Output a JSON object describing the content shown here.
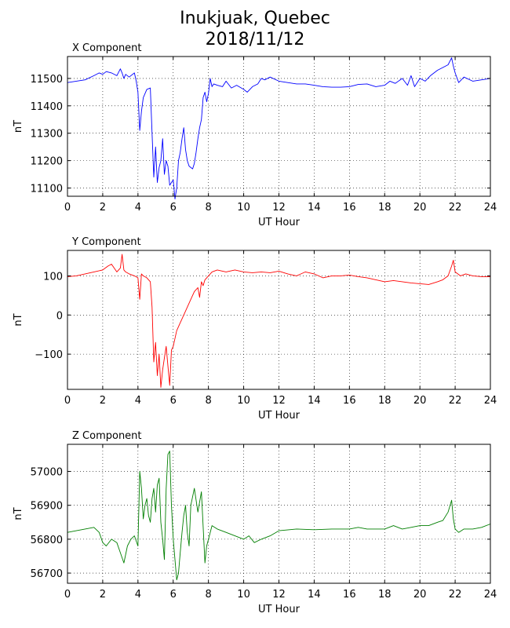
{
  "title_line1": "Inukjuak, Quebec",
  "title_line2": "2018/11/12",
  "chart_data": [
    {
      "type": "line",
      "title": "X Component",
      "xlabel": "UT Hour",
      "ylabel": "nT",
      "color": "#0000ff",
      "xlim": [
        0,
        24
      ],
      "ylim": [
        11070,
        11580
      ],
      "xticks": [
        0,
        2,
        4,
        6,
        8,
        10,
        12,
        14,
        16,
        18,
        20,
        22,
        24
      ],
      "yticks": [
        11100,
        11200,
        11300,
        11400,
        11500
      ],
      "grid": true,
      "x": [
        0,
        0.5,
        1,
        1.5,
        1.8,
        2,
        2.2,
        2.5,
        2.8,
        3,
        3.1,
        3.2,
        3.3,
        3.5,
        3.8,
        3.9,
        4.0,
        4.1,
        4.2,
        4.3,
        4.5,
        4.7,
        4.8,
        4.9,
        5.0,
        5.1,
        5.2,
        5.3,
        5.4,
        5.5,
        5.6,
        5.7,
        5.8,
        5.9,
        6.0,
        6.1,
        6.2,
        6.3,
        6.4,
        6.5,
        6.6,
        6.7,
        6.8,
        6.9,
        7.0,
        7.1,
        7.2,
        7.3,
        7.4,
        7.5,
        7.6,
        7.7,
        7.8,
        7.9,
        8.0,
        8.1,
        8.2,
        8.3,
        8.5,
        8.8,
        9.0,
        9.3,
        9.6,
        10,
        10.2,
        10.5,
        10.8,
        11,
        11.2,
        11.5,
        12,
        12.5,
        13,
        13.5,
        14,
        14.5,
        15,
        15.5,
        16,
        16.5,
        17,
        17.5,
        18,
        18.3,
        18.6,
        19,
        19.3,
        19.5,
        19.7,
        20,
        20.3,
        20.6,
        21,
        21.3,
        21.6,
        21.8,
        21.9,
        22,
        22.2,
        22.5,
        23,
        23.5,
        24
      ],
      "y": [
        11485,
        11490,
        11495,
        11510,
        11520,
        11515,
        11525,
        11520,
        11510,
        11535,
        11520,
        11500,
        11515,
        11505,
        11520,
        11490,
        11450,
        11310,
        11380,
        11430,
        11460,
        11465,
        11300,
        11140,
        11250,
        11120,
        11175,
        11200,
        11280,
        11150,
        11200,
        11180,
        11110,
        11120,
        11130,
        11060,
        11100,
        11200,
        11230,
        11280,
        11320,
        11240,
        11200,
        11180,
        11175,
        11170,
        11190,
        11230,
        11280,
        11320,
        11350,
        11430,
        11450,
        11415,
        11445,
        11500,
        11470,
        11480,
        11475,
        11470,
        11490,
        11465,
        11475,
        11460,
        11450,
        11470,
        11480,
        11500,
        11495,
        11505,
        11490,
        11485,
        11480,
        11480,
        11475,
        11470,
        11468,
        11468,
        11470,
        11478,
        11480,
        11470,
        11475,
        11490,
        11482,
        11500,
        11475,
        11510,
        11470,
        11500,
        11490,
        11510,
        11530,
        11540,
        11550,
        11575,
        11545,
        11520,
        11485,
        11505,
        11490,
        11495,
        11500
      ]
    },
    {
      "type": "line",
      "title": "Y Component",
      "xlabel": "UT Hour",
      "ylabel": "nT",
      "color": "#ff0000",
      "xlim": [
        0,
        24
      ],
      "ylim": [
        -190,
        165
      ],
      "xticks": [
        0,
        2,
        4,
        6,
        8,
        10,
        12,
        14,
        16,
        18,
        20,
        22,
        24
      ],
      "yticks": [
        -100,
        0,
        100
      ],
      "grid": true,
      "x": [
        0,
        0.5,
        1,
        1.5,
        2,
        2.3,
        2.5,
        2.8,
        3,
        3.1,
        3.2,
        3.3,
        3.5,
        3.8,
        4.0,
        4.1,
        4.2,
        4.3,
        4.5,
        4.7,
        4.8,
        4.9,
        5.0,
        5.1,
        5.2,
        5.3,
        5.4,
        5.5,
        5.6,
        5.7,
        5.8,
        5.9,
        6.0,
        6.2,
        6.4,
        6.6,
        6.8,
        7.0,
        7.2,
        7.4,
        7.5,
        7.6,
        7.7,
        7.8,
        8.0,
        8.2,
        8.5,
        9,
        9.5,
        10,
        10.5,
        11,
        11.5,
        12,
        12.5,
        13,
        13.5,
        14,
        14.5,
        15,
        15.5,
        16,
        16.5,
        17,
        17.5,
        18,
        18.5,
        19,
        19.5,
        20,
        20.5,
        21,
        21.3,
        21.6,
        21.8,
        21.9,
        22,
        22.3,
        22.6,
        23,
        23.5,
        24
      ],
      "y": [
        98,
        100,
        105,
        110,
        115,
        125,
        130,
        110,
        120,
        155,
        115,
        110,
        105,
        100,
        95,
        40,
        105,
        100,
        95,
        85,
        20,
        -120,
        -70,
        -155,
        -100,
        -185,
        -140,
        -110,
        -80,
        -130,
        -180,
        -90,
        -80,
        -40,
        -20,
        0,
        20,
        40,
        60,
        70,
        45,
        85,
        75,
        90,
        100,
        110,
        115,
        110,
        115,
        110,
        108,
        110,
        108,
        112,
        105,
        100,
        110,
        105,
        95,
        100,
        100,
        102,
        98,
        95,
        90,
        85,
        88,
        85,
        82,
        80,
        78,
        85,
        90,
        100,
        125,
        140,
        110,
        100,
        105,
        100,
        98,
        98
      ]
    },
    {
      "type": "line",
      "title": "Z Component",
      "xlabel": "UT Hour",
      "ylabel": "nT",
      "color": "#007f00",
      "xlim": [
        0,
        24
      ],
      "ylim": [
        56670,
        57080
      ],
      "xticks": [
        0,
        2,
        4,
        6,
        8,
        10,
        12,
        14,
        16,
        18,
        20,
        22,
        24
      ],
      "yticks": [
        56700,
        56800,
        56900,
        57000
      ],
      "grid": true,
      "x": [
        0,
        0.5,
        1,
        1.5,
        1.8,
        2.0,
        2.2,
        2.5,
        2.8,
        3.0,
        3.2,
        3.4,
        3.6,
        3.8,
        4.0,
        4.1,
        4.2,
        4.3,
        4.4,
        4.5,
        4.6,
        4.7,
        4.8,
        4.9,
        5.0,
        5.1,
        5.2,
        5.3,
        5.4,
        5.5,
        5.6,
        5.7,
        5.8,
        5.9,
        6.0,
        6.1,
        6.2,
        6.3,
        6.4,
        6.5,
        6.6,
        6.7,
        6.8,
        6.9,
        7.0,
        7.2,
        7.4,
        7.6,
        7.8,
        7.9,
        8.0,
        8.2,
        8.5,
        9,
        9.5,
        10,
        10.3,
        10.6,
        11,
        11.5,
        12,
        13,
        14,
        15,
        16,
        16.5,
        17,
        18,
        18.5,
        19,
        19.5,
        20,
        20.5,
        21,
        21.3,
        21.6,
        21.8,
        21.9,
        22,
        22.2,
        22.5,
        23,
        23.5,
        24
      ],
      "y": [
        56820,
        56825,
        56830,
        56835,
        56820,
        56790,
        56780,
        56800,
        56790,
        56760,
        56730,
        56780,
        56800,
        56810,
        56780,
        57000,
        56950,
        56860,
        56900,
        56920,
        56870,
        56850,
        56920,
        56950,
        56880,
        56960,
        56980,
        56850,
        56800,
        56740,
        56950,
        57050,
        57060,
        56900,
        56800,
        56740,
        56680,
        56700,
        56760,
        56820,
        56870,
        56900,
        56820,
        56780,
        56900,
        56950,
        56880,
        56940,
        56730,
        56780,
        56800,
        56840,
        56830,
        56820,
        56810,
        56800,
        56810,
        56790,
        56800,
        56810,
        56825,
        56830,
        56828,
        56830,
        56830,
        56835,
        56830,
        56830,
        56840,
        56830,
        56835,
        56840,
        56840,
        56850,
        56855,
        56880,
        56915,
        56860,
        56830,
        56820,
        56830,
        56830,
        56835,
        56845
      ]
    }
  ]
}
